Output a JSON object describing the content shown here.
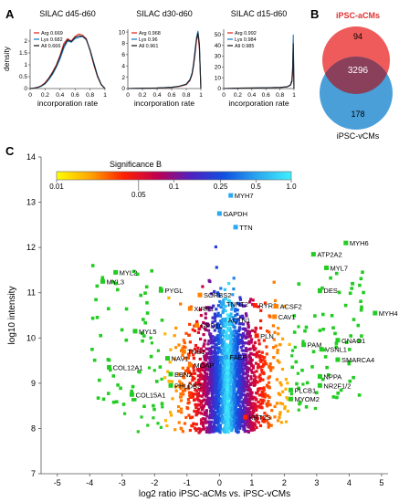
{
  "panels": {
    "A": "A",
    "B": "B",
    "C": "C"
  },
  "colors": {
    "arg": "#e03030",
    "lys": "#1f7fc8",
    "all": "#222222",
    "venn_a": "#ef5b5b",
    "venn_v": "#4a9fd8",
    "venn_overlap": "#8a3f5a",
    "axis": "#555555"
  },
  "chart_data": [
    {
      "type": "line",
      "title": "SILAC d45-d60",
      "xlabel": "incorporation rate",
      "ylabel": "density",
      "xlim": [
        0,
        1
      ],
      "ylim": [
        0,
        2.5
      ],
      "xticks": [
        "0",
        "0.2",
        "0.4",
        "0.6",
        "0.8",
        "1"
      ],
      "yticks": [
        "0",
        "0.5",
        "1",
        "1.5",
        "2"
      ],
      "legend": [
        "Arg 0.669",
        "Lys 0.682",
        "All 0.666"
      ],
      "series": [
        {
          "name": "Arg 0.669",
          "color": "#e03030",
          "x": [
            0,
            0.05,
            0.1,
            0.15,
            0.2,
            0.25,
            0.3,
            0.35,
            0.4,
            0.45,
            0.5,
            0.55,
            0.6,
            0.65,
            0.7,
            0.75,
            0.8,
            0.85,
            0.9,
            0.95,
            1
          ],
          "y": [
            0,
            0.02,
            0.05,
            0.12,
            0.25,
            0.45,
            0.7,
            1.0,
            1.4,
            1.9,
            2.1,
            2.0,
            2.2,
            2.3,
            2.25,
            2.1,
            1.6,
            1.0,
            0.5,
            0.15,
            0
          ]
        },
        {
          "name": "Lys 0.682",
          "color": "#1f7fc8",
          "x": [
            0,
            0.05,
            0.1,
            0.15,
            0.2,
            0.25,
            0.3,
            0.35,
            0.4,
            0.45,
            0.5,
            0.55,
            0.6,
            0.65,
            0.7,
            0.75,
            0.8,
            0.85,
            0.9,
            0.95,
            1
          ],
          "y": [
            0,
            0.02,
            0.04,
            0.1,
            0.2,
            0.38,
            0.6,
            0.9,
            1.25,
            1.7,
            2.0,
            1.95,
            2.1,
            2.15,
            2.2,
            2.05,
            1.65,
            1.1,
            0.55,
            0.18,
            0
          ]
        },
        {
          "name": "All 0.666",
          "color": "#222222",
          "x": [
            0,
            0.05,
            0.1,
            0.15,
            0.2,
            0.25,
            0.3,
            0.35,
            0.4,
            0.45,
            0.5,
            0.55,
            0.6,
            0.65,
            0.7,
            0.75,
            0.8,
            0.85,
            0.9,
            0.95,
            1
          ],
          "y": [
            0,
            0.02,
            0.05,
            0.11,
            0.22,
            0.42,
            0.66,
            0.95,
            1.35,
            1.8,
            2.05,
            1.98,
            2.15,
            2.22,
            2.2,
            2.08,
            1.62,
            1.05,
            0.52,
            0.16,
            0
          ]
        }
      ]
    },
    {
      "type": "line",
      "title": "SILAC d30-d60",
      "xlabel": "incorporation rate",
      "xlim": [
        0,
        1
      ],
      "ylim": [
        0,
        10.5
      ],
      "xticks": [
        "0",
        "0.2",
        "0.4",
        "0.6",
        "0.8",
        "1"
      ],
      "yticks": [
        "0",
        "2",
        "4",
        "6",
        "8",
        "10"
      ],
      "legend": [
        "Arg 0.968",
        "Lys 0.96",
        "All 0.961"
      ],
      "series": [
        {
          "name": "Arg 0.968",
          "color": "#e03030",
          "x": [
            0,
            0.2,
            0.4,
            0.6,
            0.7,
            0.8,
            0.85,
            0.88,
            0.9,
            0.92,
            0.94,
            0.96,
            0.98,
            1
          ],
          "y": [
            0,
            0.05,
            0.1,
            0.2,
            0.35,
            0.7,
            1.4,
            2.5,
            4,
            6,
            8.5,
            9.6,
            7,
            0
          ]
        },
        {
          "name": "Lys 0.96",
          "color": "#1f7fc8",
          "x": [
            0,
            0.2,
            0.4,
            0.6,
            0.7,
            0.8,
            0.85,
            0.88,
            0.9,
            0.92,
            0.94,
            0.96,
            0.98,
            1
          ],
          "y": [
            0,
            0.05,
            0.1,
            0.22,
            0.4,
            0.8,
            1.6,
            2.8,
            4.5,
            6.8,
            9,
            10.2,
            8,
            0
          ]
        },
        {
          "name": "All 0.961",
          "color": "#222222",
          "x": [
            0,
            0.2,
            0.4,
            0.6,
            0.7,
            0.8,
            0.85,
            0.88,
            0.9,
            0.92,
            0.94,
            0.96,
            0.98,
            1
          ],
          "y": [
            0,
            0.05,
            0.1,
            0.21,
            0.38,
            0.75,
            1.5,
            2.6,
            4.2,
            6.4,
            8.7,
            9.9,
            7.5,
            0
          ]
        }
      ]
    },
    {
      "type": "line",
      "title": "SILAC d15-d60",
      "xlabel": "incorporation rate",
      "xlim": [
        0,
        1
      ],
      "ylim": [
        0,
        55
      ],
      "xticks": [
        "0",
        "0.2",
        "0.4",
        "0.6",
        "0.8",
        "1"
      ],
      "yticks": [
        "0",
        "10",
        "20",
        "30",
        "40",
        "50"
      ],
      "legend": [
        "Arg 0.992",
        "Lys 0.984",
        "All 0.985"
      ],
      "series": [
        {
          "name": "Arg 0.992",
          "color": "#e03030",
          "x": [
            0,
            0.2,
            0.4,
            0.6,
            0.8,
            0.9,
            0.95,
            0.97,
            0.98,
            0.99,
            1
          ],
          "y": [
            0,
            0.3,
            0.5,
            0.7,
            1.0,
            1.5,
            3,
            6,
            14,
            30,
            0
          ]
        },
        {
          "name": "Lys 0.984",
          "color": "#1f7fc8",
          "x": [
            0,
            0.2,
            0.4,
            0.6,
            0.8,
            0.9,
            0.95,
            0.97,
            0.98,
            0.99,
            1
          ],
          "y": [
            0,
            0.3,
            0.5,
            0.7,
            1.0,
            1.6,
            3.5,
            8,
            20,
            50,
            0
          ]
        },
        {
          "name": "All 0.985",
          "color": "#222222",
          "x": [
            0,
            0.2,
            0.4,
            0.6,
            0.8,
            0.9,
            0.95,
            0.97,
            0.98,
            0.99,
            1
          ],
          "y": [
            0,
            0.3,
            0.5,
            0.7,
            1.0,
            1.55,
            3.2,
            7,
            17,
            42,
            0
          ]
        }
      ]
    },
    {
      "type": "venn",
      "sets": [
        {
          "name": "iPSC-aCMs",
          "only": 94
        },
        {
          "name": "iPSC-vCMs",
          "only": 178
        }
      ],
      "overlap": 3296
    },
    {
      "type": "scatter",
      "xlabel": "log2 ratio iPSC-aCMs vs. iPSC-vCMs",
      "ylabel": "log10 intensity",
      "xlim": [
        -5.5,
        5.2
      ],
      "ylim": [
        7,
        14
      ],
      "xticks": [
        -5,
        -4,
        -3,
        -2,
        -1,
        0,
        1,
        2,
        3,
        4,
        5
      ],
      "yticks": [
        7,
        8,
        9,
        10,
        11,
        12,
        13,
        14
      ],
      "colorbar": {
        "title": "Significance B",
        "ticks": [
          "0.01",
          "0.05",
          "0.1",
          "0.25",
          "0.5",
          "1.0"
        ],
        "tick_values": [
          0.01,
          0.05,
          0.1,
          0.25,
          0.5,
          1.0
        ],
        "colors": [
          "#ffff00",
          "#ffa500",
          "#ff2000",
          "#c00050",
          "#5020c0",
          "#1050e0",
          "#2aa8f0",
          "#40f0ff"
        ]
      },
      "labels": [
        {
          "text": "MYH7",
          "x": 0.35,
          "y": 13.15,
          "color": "#2aa8f0"
        },
        {
          "text": "GAPDH",
          "x": 0.0,
          "y": 12.75,
          "color": "#2aa8f0"
        },
        {
          "text": "TTN",
          "x": 0.5,
          "y": 12.45,
          "color": "#2aa8f0"
        },
        {
          "text": "MYH6",
          "x": 3.9,
          "y": 12.1,
          "color": "#22cc22"
        },
        {
          "text": "ATP2A2",
          "x": 2.9,
          "y": 11.85,
          "color": "#22cc22"
        },
        {
          "text": "MYL7",
          "x": 3.3,
          "y": 11.55,
          "color": "#22cc22"
        },
        {
          "text": "MYL2",
          "x": -3.2,
          "y": 11.45,
          "color": "#22cc22"
        },
        {
          "text": "MYL3",
          "x": -3.6,
          "y": 11.25,
          "color": "#22cc22"
        },
        {
          "text": "PYGL",
          "x": -1.8,
          "y": 11.05,
          "color": "#22cc22"
        },
        {
          "text": "SORBS2",
          "x": -0.6,
          "y": 10.95,
          "color": "#ff8000"
        },
        {
          "text": "DES",
          "x": 3.1,
          "y": 11.05,
          "color": "#22cc22"
        },
        {
          "text": "XIRP1",
          "x": -0.9,
          "y": 10.65,
          "color": "#ff8000"
        },
        {
          "text": "TNNT2",
          "x": 0.1,
          "y": 10.75,
          "color": "#2aa8f0"
        },
        {
          "text": "RYR2",
          "x": 1.1,
          "y": 10.72,
          "color": "#ff2000"
        },
        {
          "text": "ACSF2",
          "x": 1.75,
          "y": 10.7,
          "color": "#ff8000"
        },
        {
          "text": "CAV1",
          "x": 1.7,
          "y": 10.47,
          "color": "#ff8000"
        },
        {
          "text": "ACTN1",
          "x": 0.15,
          "y": 10.4,
          "color": "#2aa8f0"
        },
        {
          "text": "MYH4",
          "x": 4.8,
          "y": 10.55,
          "color": "#22cc22"
        },
        {
          "text": "MYL5",
          "x": -2.6,
          "y": 10.15,
          "color": "#22cc22"
        },
        {
          "text": "GPD1L",
          "x": -0.7,
          "y": 10.28,
          "color": "#ff8000"
        },
        {
          "text": "PLN",
          "x": 1.15,
          "y": 10.05,
          "color": "#ff2000"
        },
        {
          "text": "GNAO1",
          "x": 3.65,
          "y": 9.95,
          "color": "#22cc22"
        },
        {
          "text": "PAM",
          "x": 2.6,
          "y": 9.85,
          "color": "#22cc22"
        },
        {
          "text": "VSNL1",
          "x": 3.15,
          "y": 9.75,
          "color": "#22cc22"
        },
        {
          "text": "TNS1",
          "x": -1.1,
          "y": 9.7,
          "color": "#ff8000"
        },
        {
          "text": "NAV1",
          "x": -1.6,
          "y": 9.55,
          "color": "#22cc22"
        },
        {
          "text": "FABP",
          "x": 0.2,
          "y": 9.58,
          "color": "#2aa8f0"
        },
        {
          "text": "SMARCA4",
          "x": 3.65,
          "y": 9.52,
          "color": "#22cc22"
        },
        {
          "text": "MOAP",
          "x": -0.9,
          "y": 9.4,
          "color": "#ff8000"
        },
        {
          "text": "COL12A1",
          "x": -3.4,
          "y": 9.35,
          "color": "#22cc22"
        },
        {
          "text": "EBN2",
          "x": -1.5,
          "y": 9.2,
          "color": "#22cc22"
        },
        {
          "text": "NPPA",
          "x": 3.1,
          "y": 9.15,
          "color": "#22cc22"
        },
        {
          "text": "PHLDB2",
          "x": -1.5,
          "y": 8.95,
          "color": "#22cc22"
        },
        {
          "text": "NR2F1/2",
          "x": 3.1,
          "y": 8.95,
          "color": "#22cc22"
        },
        {
          "text": "COL15A1",
          "x": -2.7,
          "y": 8.75,
          "color": "#22cc22"
        },
        {
          "text": "PLCB1",
          "x": 2.2,
          "y": 8.85,
          "color": "#22cc22"
        },
        {
          "text": "MYOM2",
          "x": 2.2,
          "y": 8.65,
          "color": "#22cc22"
        },
        {
          "text": "KRT2S",
          "x": 0.8,
          "y": 8.25,
          "color": "#ff2000"
        }
      ]
    }
  ]
}
